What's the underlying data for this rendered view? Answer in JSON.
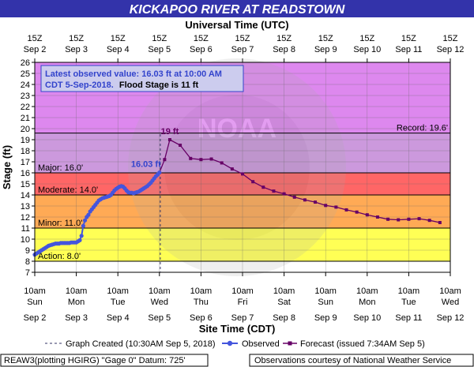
{
  "title": "KICKAPOO RIVER AT READSTOWN",
  "top_axis_title": "Universal Time (UTC)",
  "bottom_axis_title": "Site Time (CDT)",
  "y_axis_title": "Stage (ft)",
  "info_box": {
    "line1": "Latest observed value: 16.03 ft at 10:00 AM",
    "line2_a": "CDT 5-Sep-2018.",
    "line2_b": "Flood Stage is 11 ft"
  },
  "legend": {
    "created": "Graph Created (10:30AM Sep 5, 2018)",
    "observed": "Observed",
    "forecast": "Forecast (issued 7:34AM Sep 5)"
  },
  "footer": {
    "left": "REAW3(plotting HGIRG) \"Gage 0\" Datum: 725'",
    "right": "Observations courtesy of National Weather Service"
  },
  "colors": {
    "title_bg": "#3333aa",
    "record": "#dd88ee",
    "major": "#cc99dd",
    "moderate_band": "#ff6666",
    "minor_band": "#ffaa55",
    "action_band": "#ffff55",
    "normal": "#ffffff",
    "observed": "#4455dd",
    "forecast": "#660066",
    "info_text": "#3344cc"
  },
  "chart_data": {
    "type": "line",
    "x_unit": "hours since Sep 2 10am CDT",
    "xlim": [
      0,
      240
    ],
    "ylim": [
      7,
      26
    ],
    "grid": true,
    "top_ticks": [
      {
        "l1": "15Z",
        "l2": "Sep 2"
      },
      {
        "l1": "15Z",
        "l2": "Sep 3"
      },
      {
        "l1": "15Z",
        "l2": "Sep 4"
      },
      {
        "l1": "15Z",
        "l2": "Sep 5"
      },
      {
        "l1": "15Z",
        "l2": "Sep 6"
      },
      {
        "l1": "15Z",
        "l2": "Sep 7"
      },
      {
        "l1": "15Z",
        "l2": "Sep 8"
      },
      {
        "l1": "15Z",
        "l2": "Sep 9"
      },
      {
        "l1": "15Z",
        "l2": "Sep 10"
      },
      {
        "l1": "15Z",
        "l2": "Sep 11"
      },
      {
        "l1": "15Z",
        "l2": "Sep 12"
      }
    ],
    "bottom_ticks": [
      {
        "l1": "10am",
        "l2": "Sun",
        "l3": "Sep 2"
      },
      {
        "l1": "10am",
        "l2": "Mon",
        "l3": "Sep 3"
      },
      {
        "l1": "10am",
        "l2": "Tue",
        "l3": "Sep 4"
      },
      {
        "l1": "10am",
        "l2": "Wed",
        "l3": "Sep 5"
      },
      {
        "l1": "10am",
        "l2": "Thu",
        "l3": "Sep 6"
      },
      {
        "l1": "10am",
        "l2": "Fri",
        "l3": "Sep 7"
      },
      {
        "l1": "10am",
        "l2": "Sat",
        "l3": "Sep 8"
      },
      {
        "l1": "10am",
        "l2": "Sun",
        "l3": "Sep 9"
      },
      {
        "l1": "10am",
        "l2": "Mon",
        "l3": "Sep 10"
      },
      {
        "l1": "10am",
        "l2": "Tue",
        "l3": "Sep 11"
      },
      {
        "l1": "10am",
        "l2": "Wed",
        "l3": "Sep 12"
      }
    ],
    "y_ticks": [
      7,
      8,
      9,
      10,
      11,
      12,
      13,
      14,
      15,
      16,
      17,
      18,
      19,
      20,
      21,
      22,
      23,
      24,
      25,
      26
    ],
    "thresholds": [
      {
        "name": "action",
        "label": "Action: 8.0'",
        "value": 8.0
      },
      {
        "name": "minor",
        "label": "Minor: 11.0'",
        "value": 11.0
      },
      {
        "name": "moderate",
        "label": "Moderate: 14.0'",
        "value": 14.0
      },
      {
        "name": "major",
        "label": "Major: 16.0'",
        "value": 16.0
      },
      {
        "name": "record",
        "label": "Record: 19.6'",
        "value": 19.6
      }
    ],
    "graph_created_x": 72.5,
    "observed_label": "16.03 ft",
    "forecast_peak_label": "19 ft",
    "observed": {
      "x": [
        0,
        1,
        2,
        3,
        4,
        5,
        6,
        7,
        8,
        9,
        10,
        11,
        12,
        13,
        14,
        15,
        16,
        17,
        18,
        19,
        20,
        21,
        22,
        23,
        24,
        25,
        26,
        27,
        28,
        29,
        30,
        31,
        32,
        33,
        34,
        35,
        36,
        37,
        38,
        39,
        40,
        41,
        42,
        43,
        44,
        45,
        46,
        47,
        48,
        49,
        50,
        51,
        52,
        53,
        54,
        55,
        56,
        57,
        58,
        59,
        60,
        61,
        62,
        63,
        64,
        65,
        66,
        67,
        68,
        69,
        70,
        71,
        72
      ],
      "y": [
        8.6,
        8.7,
        8.8,
        8.9,
        9.0,
        9.1,
        9.2,
        9.3,
        9.4,
        9.45,
        9.5,
        9.55,
        9.6,
        9.6,
        9.6,
        9.65,
        9.65,
        9.65,
        9.65,
        9.65,
        9.65,
        9.7,
        9.7,
        9.7,
        9.7,
        9.8,
        9.9,
        10.3,
        11.2,
        11.7,
        12.0,
        12.2,
        12.5,
        12.7,
        12.9,
        13.1,
        13.3,
        13.5,
        13.6,
        13.7,
        13.75,
        13.8,
        13.85,
        13.9,
        14.0,
        14.2,
        14.4,
        14.55,
        14.65,
        14.75,
        14.8,
        14.75,
        14.6,
        14.4,
        14.25,
        14.2,
        14.2,
        14.15,
        14.2,
        14.25,
        14.3,
        14.4,
        14.5,
        14.6,
        14.7,
        14.8,
        14.95,
        15.1,
        15.3,
        15.5,
        15.7,
        15.85,
        16.03
      ]
    },
    "forecast": {
      "x": [
        72,
        75,
        78,
        84,
        90,
        96,
        102,
        108,
        114,
        120,
        126,
        132,
        138,
        144,
        150,
        156,
        162,
        168,
        174,
        180,
        186,
        192,
        198,
        204,
        210,
        216,
        222,
        228,
        234
      ],
      "y": [
        16.03,
        17.2,
        19.0,
        18.5,
        17.3,
        17.2,
        17.25,
        16.9,
        16.35,
        15.9,
        15.2,
        14.7,
        14.35,
        14.1,
        13.8,
        13.55,
        13.35,
        13.05,
        12.9,
        12.65,
        12.45,
        12.2,
        12.0,
        11.8,
        11.75,
        11.8,
        11.85,
        11.7,
        11.5
      ]
    }
  }
}
